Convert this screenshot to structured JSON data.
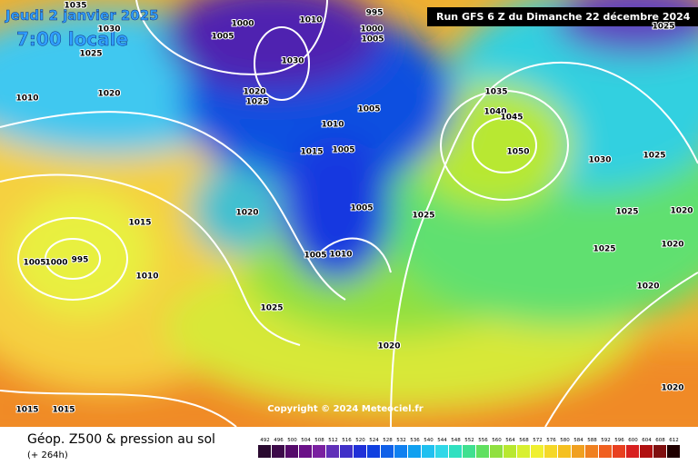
{
  "header": {
    "date": "Jeudi 2 janvier 2025",
    "time": "7:00 locale",
    "run": "Run GFS 6 Z du Dimanche 22 décembre 2024"
  },
  "isobar_labels": [
    "1035",
    "1030",
    "1000",
    "1005",
    "1010",
    "995",
    "1000",
    "1005",
    "1025",
    "1030",
    "1010",
    "1020",
    "1020",
    "1025",
    "1010",
    "1005",
    "1035",
    "1040",
    "1045",
    "1050",
    "1030",
    "1025",
    "1015",
    "1005",
    "1020",
    "1015",
    "1005",
    "1025",
    "1025",
    "1020",
    "1025",
    "1020",
    "1020",
    "1005",
    "1000",
    "995",
    "1010",
    "1005",
    "1010",
    "1025",
    "1020",
    "1020",
    "1015",
    "1015",
    "1025"
  ],
  "copyright": "Copyright © 2024 Meteociel.fr",
  "footer": {
    "title": "Géop. Z500 & pression au sol",
    "lead": "(+ 264h)"
  },
  "color_scale": [
    "492",
    "496",
    "500",
    "504",
    "508",
    "512",
    "516",
    "520",
    "524",
    "528",
    "532",
    "536",
    "540",
    "544",
    "548",
    "552",
    "556",
    "560",
    "564",
    "568",
    "572",
    "576",
    "580",
    "584",
    "588",
    "592",
    "596",
    "600",
    "604",
    "608",
    "612"
  ]
}
